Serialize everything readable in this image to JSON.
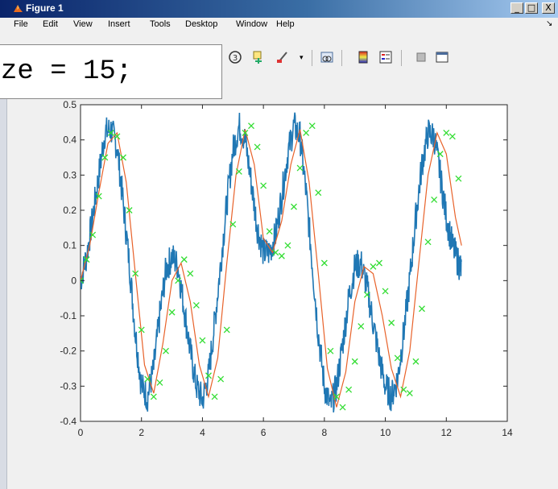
{
  "window": {
    "title": "Figure 1",
    "min_label": "_",
    "max_label": "□",
    "close_label": "X"
  },
  "menu": [
    "File",
    "Edit",
    "View",
    "Insert",
    "Tools",
    "Desktop",
    "Window",
    "Help"
  ],
  "code_overlay": "ze = 15;",
  "colors": {
    "signal": "#1f77b4",
    "fit": "#e8622a",
    "markers": "#33dd33",
    "axes": "#000000"
  },
  "chart_data": {
    "type": "line",
    "title": "",
    "xlabel": "",
    "ylabel": "",
    "xlim": [
      0,
      14
    ],
    "ylim": [
      -0.4,
      0.5
    ],
    "xticks": [
      "0",
      "2",
      "4",
      "6",
      "8",
      "10",
      "12",
      "14"
    ],
    "yticks": [
      "0.5",
      "0.4",
      "0.3",
      "0.2",
      "0.1",
      "0",
      "-0.1",
      "-0.2",
      "-0.3",
      "-0.4"
    ],
    "grid": false,
    "legend": "none",
    "series": [
      {
        "kind": "noisy-signal",
        "x": [
          0,
          0.2,
          0.4,
          0.6,
          0.8,
          1.0,
          1.2,
          1.4,
          1.6,
          1.8,
          2.0,
          2.2,
          2.4,
          2.6,
          2.8,
          3.0,
          3.2,
          3.4,
          3.6,
          3.8,
          4.0,
          4.2,
          4.4,
          4.6,
          4.8,
          5.0,
          5.2,
          5.4,
          5.6,
          5.8,
          6.0,
          6.2,
          6.4,
          6.6,
          6.8,
          7.0,
          7.2,
          7.4,
          7.6,
          7.8,
          8.0,
          8.2,
          8.4,
          8.6,
          8.8,
          9.0,
          9.2,
          9.4,
          9.6,
          9.8,
          10.0,
          10.2,
          10.4,
          10.6,
          10.8,
          11.0,
          11.2,
          11.4,
          11.6,
          11.8,
          12.0,
          12.2,
          12.4,
          12.5
        ],
        "y": [
          0.0,
          0.07,
          0.18,
          0.3,
          0.42,
          0.43,
          0.38,
          0.22,
          0.05,
          -0.15,
          -0.3,
          -0.33,
          -0.25,
          -0.1,
          0.03,
          0.07,
          0.04,
          -0.08,
          -0.2,
          -0.3,
          -0.34,
          -0.27,
          -0.12,
          0.05,
          0.22,
          0.37,
          0.44,
          0.4,
          0.28,
          0.15,
          0.08,
          0.08,
          0.13,
          0.24,
          0.36,
          0.44,
          0.41,
          0.25,
          0.05,
          -0.15,
          -0.3,
          -0.36,
          -0.3,
          -0.18,
          -0.05,
          0.04,
          0.05,
          -0.02,
          -0.12,
          -0.22,
          -0.3,
          -0.33,
          -0.28,
          -0.15,
          0.0,
          0.18,
          0.33,
          0.42,
          0.41,
          0.3,
          0.18,
          0.1,
          0.05,
          0.03
        ]
      },
      {
        "kind": "smooth-fit",
        "x": [
          0,
          0.3,
          0.6,
          0.9,
          1.2,
          1.5,
          1.8,
          2.1,
          2.4,
          2.7,
          3.0,
          3.3,
          3.6,
          3.9,
          4.2,
          4.5,
          4.8,
          5.1,
          5.4,
          5.7,
          6.0,
          6.3,
          6.6,
          6.9,
          7.2,
          7.5,
          7.8,
          8.1,
          8.4,
          8.7,
          9.0,
          9.3,
          9.6,
          9.9,
          10.2,
          10.5,
          10.8,
          11.1,
          11.4,
          11.7,
          12.0,
          12.3,
          12.5
        ],
        "y": [
          0.0,
          0.1,
          0.25,
          0.39,
          0.42,
          0.28,
          0.02,
          -0.24,
          -0.32,
          -0.18,
          0.0,
          0.05,
          -0.06,
          -0.24,
          -0.33,
          -0.22,
          0.05,
          0.3,
          0.43,
          0.33,
          0.12,
          0.08,
          0.17,
          0.33,
          0.43,
          0.28,
          0.02,
          -0.25,
          -0.36,
          -0.26,
          -0.06,
          0.04,
          0.02,
          -0.1,
          -0.25,
          -0.33,
          -0.2,
          0.05,
          0.3,
          0.42,
          0.36,
          0.18,
          0.1
        ]
      },
      {
        "kind": "markers",
        "marker": "x",
        "x": [
          0,
          0.2,
          0.4,
          0.6,
          0.8,
          1.0,
          1.2,
          1.4,
          1.6,
          1.8,
          2.0,
          2.2,
          2.4,
          2.6,
          2.8,
          3.0,
          3.2,
          3.4,
          3.6,
          3.8,
          4.0,
          4.2,
          4.4,
          4.6,
          4.8,
          5.0,
          5.2,
          5.4,
          5.6,
          5.8,
          6.0,
          6.2,
          6.4,
          6.6,
          6.8,
          7.0,
          7.2,
          7.4,
          7.6,
          7.8,
          8.0,
          8.2,
          8.4,
          8.6,
          8.8,
          9.0,
          9.2,
          9.4,
          9.6,
          9.8,
          10.0,
          10.2,
          10.4,
          10.6,
          10.8,
          11.0,
          11.2,
          11.4,
          11.6,
          11.8,
          12.0,
          12.2,
          12.4
        ],
        "y": [
          0.0,
          0.06,
          0.13,
          0.24,
          0.35,
          0.42,
          0.41,
          0.35,
          0.2,
          0.02,
          -0.14,
          -0.28,
          -0.33,
          -0.29,
          -0.2,
          -0.09,
          0.0,
          0.06,
          0.02,
          -0.07,
          -0.17,
          -0.27,
          -0.33,
          -0.28,
          -0.14,
          0.16,
          0.31,
          0.42,
          0.44,
          0.38,
          0.27,
          0.14,
          0.08,
          0.07,
          0.1,
          0.21,
          0.32,
          0.42,
          0.44,
          0.25,
          0.05,
          -0.2,
          -0.33,
          -0.36,
          -0.31,
          -0.23,
          -0.13,
          -0.04,
          0.04,
          0.05,
          -0.03,
          -0.12,
          -0.22,
          -0.31,
          -0.32,
          -0.23,
          -0.08,
          0.11,
          0.23,
          0.36,
          0.42,
          0.41,
          0.29
        ]
      }
    ]
  }
}
